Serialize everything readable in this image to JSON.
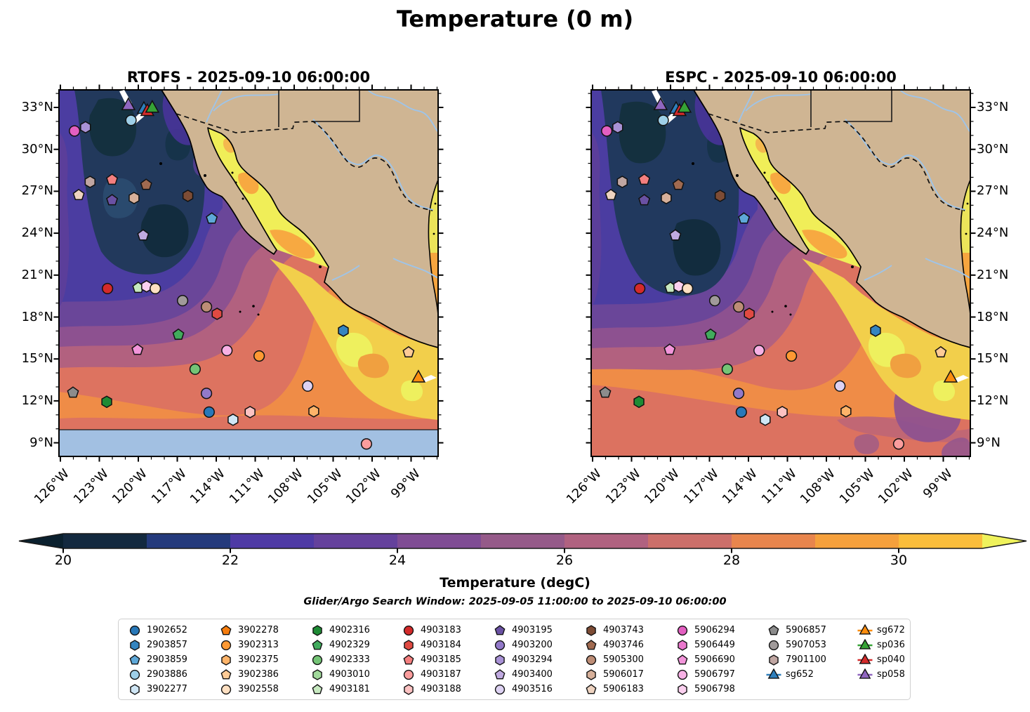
{
  "suptitle": "Temperature (0 m)",
  "panels": [
    {
      "title": "RTOFS - 2025-09-10 06:00:00",
      "model": "RTOFS",
      "no_data_band": true
    },
    {
      "title": "ESPC - 2025-09-10 06:00:00",
      "model": "ESPC",
      "no_data_band": false
    }
  ],
  "axes": {
    "lat_ticks": [
      {
        "label": "33°N",
        "value": 33
      },
      {
        "label": "30°N",
        "value": 30
      },
      {
        "label": "27°N",
        "value": 27
      },
      {
        "label": "24°N",
        "value": 24
      },
      {
        "label": "21°N",
        "value": 21
      },
      {
        "label": "18°N",
        "value": 18
      },
      {
        "label": "15°N",
        "value": 15
      },
      {
        "label": "12°N",
        "value": 12
      },
      {
        "label": "9°N",
        "value": 9
      }
    ],
    "lon_ticks": [
      {
        "label": "126°W",
        "value": 126
      },
      {
        "label": "123°W",
        "value": 123
      },
      {
        "label": "120°W",
        "value": 120
      },
      {
        "label": "117°W",
        "value": 117
      },
      {
        "label": "114°W",
        "value": 114
      },
      {
        "label": "111°W",
        "value": 111
      },
      {
        "label": "108°W",
        "value": 108
      },
      {
        "label": "105°W",
        "value": 105
      },
      {
        "label": "102°W",
        "value": 102
      },
      {
        "label": "99°W",
        "value": 99
      }
    ]
  },
  "colorbar": {
    "label": "Temperature (degC)",
    "ticks": [
      "20",
      "22",
      "24",
      "26",
      "28",
      "30"
    ],
    "range": [
      20,
      31
    ],
    "arrow_left_color": "#0a202e",
    "arrow_right_color": "#eff25c",
    "segment_colors": [
      "#13293f",
      "#243a7c",
      "#4e3aa5",
      "#64419c",
      "#7f4c94",
      "#955a89",
      "#b06280",
      "#cc6f6a",
      "#e8854d",
      "#f5a03c",
      "#fabd3b"
    ]
  },
  "search_window": "Glider/Argo Search Window: 2025-09-05 11:00:00 to 2025-09-10 06:00:00",
  "legend": {
    "columns": [
      [
        {
          "id": "1902652",
          "shape": "circle",
          "color": "#2878b8"
        },
        {
          "id": "2903857",
          "shape": "hexagon",
          "color": "#3585c0"
        },
        {
          "id": "2903859",
          "shape": "pentagon",
          "color": "#5ea8d8"
        },
        {
          "id": "2903886",
          "shape": "circle",
          "color": "#9ecfe8"
        },
        {
          "id": "3902277",
          "shape": "hexagon",
          "color": "#cfe6f5"
        }
      ],
      [
        {
          "id": "3902278",
          "shape": "pentagon",
          "color": "#f67d0e"
        },
        {
          "id": "3902313",
          "shape": "circle",
          "color": "#fe9933"
        },
        {
          "id": "3902375",
          "shape": "hexagon",
          "color": "#feb469"
        },
        {
          "id": "3902386",
          "shape": "pentagon",
          "color": "#fecb96"
        },
        {
          "id": "3902558",
          "shape": "circle",
          "color": "#fee0c2"
        }
      ],
      [
        {
          "id": "4902316",
          "shape": "hexagon",
          "color": "#1e8b34"
        },
        {
          "id": "4902329",
          "shape": "pentagon",
          "color": "#41ab5d"
        },
        {
          "id": "4902333",
          "shape": "circle",
          "color": "#74c476"
        },
        {
          "id": "4903010",
          "shape": "hexagon",
          "color": "#a1d99b"
        },
        {
          "id": "4903181",
          "shape": "pentagon",
          "color": "#c7e9c0"
        }
      ],
      [
        {
          "id": "4903183",
          "shape": "circle",
          "color": "#d42a2a"
        },
        {
          "id": "4903184",
          "shape": "hexagon",
          "color": "#e04a42"
        },
        {
          "id": "4903185",
          "shape": "pentagon",
          "color": "#f47f7f"
        },
        {
          "id": "4903187",
          "shape": "circle",
          "color": "#fa9d9d"
        },
        {
          "id": "4903188",
          "shape": "hexagon",
          "color": "#fcc2c2"
        }
      ],
      [
        {
          "id": "4903195",
          "shape": "pentagon",
          "color": "#6a51a3"
        },
        {
          "id": "4903200",
          "shape": "circle",
          "color": "#9279c9"
        },
        {
          "id": "4903294",
          "shape": "hexagon",
          "color": "#a992d6"
        },
        {
          "id": "4903400",
          "shape": "pentagon",
          "color": "#c0aae0"
        },
        {
          "id": "4903516",
          "shape": "circle",
          "color": "#ddd2f2"
        }
      ],
      [
        {
          "id": "4903743",
          "shape": "hexagon",
          "color": "#7d4c35"
        },
        {
          "id": "4903746",
          "shape": "pentagon",
          "color": "#a06a50"
        },
        {
          "id": "5905300",
          "shape": "circle",
          "color": "#bd8d76"
        },
        {
          "id": "5906017",
          "shape": "hexagon",
          "color": "#d7b09a"
        },
        {
          "id": "5906183",
          "shape": "pentagon",
          "color": "#eed3c0"
        }
      ],
      [
        {
          "id": "5906294",
          "shape": "circle",
          "color": "#e35fc1"
        },
        {
          "id": "5906449",
          "shape": "hexagon",
          "color": "#ea77cd"
        },
        {
          "id": "5906690",
          "shape": "pentagon",
          "color": "#f295da"
        },
        {
          "id": "5906797",
          "shape": "circle",
          "color": "#f7b1e5"
        },
        {
          "id": "5906798",
          "shape": "hexagon",
          "color": "#fbd0ef"
        }
      ],
      [
        {
          "id": "5906857",
          "shape": "pentagon",
          "color": "#8c8c8c"
        },
        {
          "id": "5907053",
          "shape": "circle",
          "color": "#a09a9a"
        },
        {
          "id": "7901100",
          "shape": "hexagon",
          "color": "#c0a6a2"
        },
        {
          "id": "sg652",
          "shape": "triangle",
          "color": "#2f7fbc"
        }
      ],
      [
        {
          "id": "sg672",
          "shape": "triangle",
          "color": "#fd8d0e"
        },
        {
          "id": "sp036",
          "shape": "triangle",
          "color": "#36a336"
        },
        {
          "id": "sp040",
          "shape": "triangle",
          "color": "#d42a2a"
        },
        {
          "id": "sp058",
          "shape": "triangle",
          "color": "#9066c0"
        }
      ]
    ]
  },
  "markers": [
    {
      "id": "sp058",
      "shape": "triangle",
      "color": "#9066c0",
      "x": 18.3,
      "y": 4.2
    },
    {
      "id": "sg652",
      "shape": "triangle",
      "color": "#2f7fbc",
      "x": 22.4,
      "y": 5.2
    },
    {
      "id": "sp040",
      "shape": "triangle",
      "color": "#d42a2a",
      "x": 23.3,
      "y": 5.8
    },
    {
      "id": "sp036",
      "shape": "triangle",
      "color": "#36a336",
      "x": 24.6,
      "y": 4.9
    },
    {
      "id": "2903886",
      "shape": "circle",
      "color": "#9ecfe8",
      "x": 19.0,
      "y": 8.3
    },
    {
      "id": "5906294",
      "shape": "circle",
      "color": "#e35fc1",
      "x": 4.1,
      "y": 11.2
    },
    {
      "id": "4903294",
      "shape": "hexagon",
      "color": "#a992d6",
      "x": 7.0,
      "y": 10.2
    },
    {
      "id": "7901100",
      "shape": "hexagon",
      "color": "#c0a6a2",
      "x": 8.2,
      "y": 25.1
    },
    {
      "id": "4903185",
      "shape": "pentagon",
      "color": "#f47f7f",
      "x": 14.0,
      "y": 24.5
    },
    {
      "id": "4903746",
      "shape": "pentagon",
      "color": "#a06a50",
      "x": 23.0,
      "y": 25.9
    },
    {
      "id": "5906183",
      "shape": "pentagon",
      "color": "#eed3c0",
      "x": 5.2,
      "y": 28.7
    },
    {
      "id": "5906017",
      "shape": "hexagon",
      "color": "#d7b09a",
      "x": 19.8,
      "y": 29.5
    },
    {
      "id": "4903195",
      "shape": "pentagon",
      "color": "#6a51a3",
      "x": 14.0,
      "y": 30.1
    },
    {
      "id": "4903743",
      "shape": "hexagon",
      "color": "#7d4c35",
      "x": 34.0,
      "y": 28.9
    },
    {
      "id": "2903859",
      "shape": "pentagon",
      "color": "#5ea8d8",
      "x": 40.3,
      "y": 35.1
    },
    {
      "id": "4903400",
      "shape": "pentagon",
      "color": "#c0aae0",
      "x": 22.2,
      "y": 39.7
    },
    {
      "id": "4903183",
      "shape": "circle",
      "color": "#d42a2a",
      "x": 12.8,
      "y": 54.2
    },
    {
      "id": "4903181",
      "shape": "pentagon",
      "color": "#c7e9c0",
      "x": 20.9,
      "y": 54.0
    },
    {
      "id": "5906798",
      "shape": "hexagon",
      "color": "#fbd0ef",
      "x": 23.1,
      "y": 53.6
    },
    {
      "id": "3902558",
      "shape": "circle",
      "color": "#fee0c2",
      "x": 25.4,
      "y": 54.2
    },
    {
      "id": "5907053",
      "shape": "circle",
      "color": "#a09a9a",
      "x": 32.6,
      "y": 57.5
    },
    {
      "id": "5905300",
      "shape": "circle",
      "color": "#bd8d76",
      "x": 38.9,
      "y": 59.2
    },
    {
      "id": "4903184",
      "shape": "hexagon",
      "color": "#e04a42",
      "x": 41.7,
      "y": 61.1
    },
    {
      "id": "4902329",
      "shape": "pentagon",
      "color": "#41ab5d",
      "x": 31.5,
      "y": 66.8
    },
    {
      "id": "5906690",
      "shape": "pentagon",
      "color": "#f295da",
      "x": 20.7,
      "y": 70.9
    },
    {
      "id": "5906797",
      "shape": "circle",
      "color": "#f7b1e5",
      "x": 44.3,
      "y": 71.1
    },
    {
      "id": "3902313",
      "shape": "circle",
      "color": "#fe9933",
      "x": 52.8,
      "y": 72.6
    },
    {
      "id": "4902333",
      "shape": "circle",
      "color": "#74c476",
      "x": 35.9,
      "y": 76.2
    },
    {
      "id": "2903857",
      "shape": "hexagon",
      "color": "#3585c0",
      "x": 75.0,
      "y": 65.7
    },
    {
      "id": "4903516",
      "shape": "circle",
      "color": "#ddd2f2",
      "x": 65.6,
      "y": 80.8
    },
    {
      "id": "5906857",
      "shape": "pentagon",
      "color": "#8c8c8c",
      "x": 3.7,
      "y": 82.6
    },
    {
      "id": "4902316",
      "shape": "hexagon",
      "color": "#1e8b34",
      "x": 12.6,
      "y": 85.1
    },
    {
      "id": "4903200",
      "shape": "circle",
      "color": "#9279c9",
      "x": 38.9,
      "y": 82.8
    },
    {
      "id": "1902652",
      "shape": "circle",
      "color": "#2878b8",
      "x": 39.6,
      "y": 87.9
    },
    {
      "id": "3902277",
      "shape": "hexagon",
      "color": "#cfe6f5",
      "x": 45.9,
      "y": 90.0
    },
    {
      "id": "4903188",
      "shape": "hexagon",
      "color": "#fcc2c2",
      "x": 50.4,
      "y": 87.9
    },
    {
      "id": "3902375",
      "shape": "hexagon",
      "color": "#feb469",
      "x": 67.2,
      "y": 87.7
    },
    {
      "id": "3902386",
      "shape": "pentagon",
      "color": "#fecb96",
      "x": 92.2,
      "y": 71.6
    },
    {
      "id": "sg672",
      "shape": "triangle",
      "color": "#fd8d0e",
      "x": 94.8,
      "y": 78.5
    },
    {
      "id": "4903187",
      "shape": "circle",
      "color": "#fa9d9d",
      "x": 81.1,
      "y": 96.6
    }
  ],
  "map_style": {
    "land_color": "#cfb593",
    "no_data_color": "#a2c0e2",
    "gulf_color": "#f0ee58",
    "river_color": "#9fc4e8"
  },
  "chart_data": {
    "type": "heatmap",
    "title": "Temperature (0 m)",
    "panels": [
      "RTOFS - 2025-09-10 06:00:00",
      "ESPC - 2025-09-10 06:00:00"
    ],
    "x_ticks": [
      "126°W",
      "123°W",
      "120°W",
      "117°W",
      "114°W",
      "111°W",
      "108°W",
      "105°W",
      "102°W",
      "99°W"
    ],
    "y_ticks": [
      "33°N",
      "30°N",
      "27°N",
      "24°N",
      "21°N",
      "18°N",
      "15°N",
      "12°N",
      "9°N"
    ],
    "colorbar": {
      "label": "Temperature (degC)",
      "ticks": [
        20,
        22,
        24,
        26,
        28,
        30
      ],
      "range": [
        20,
        31
      ],
      "units": "degC"
    },
    "annotation": "Glider/Argo Search Window: 2025-09-05 11:00:00 to 2025-09-10 06:00:00",
    "legend_position": "bottom",
    "notes": "Two sea-surface temperature model maps (RTOFS vs ESPC) over the NE Pacific / Gulf of California with Argo float and glider positions; RTOFS panel has a no-data band south of 10N"
  }
}
